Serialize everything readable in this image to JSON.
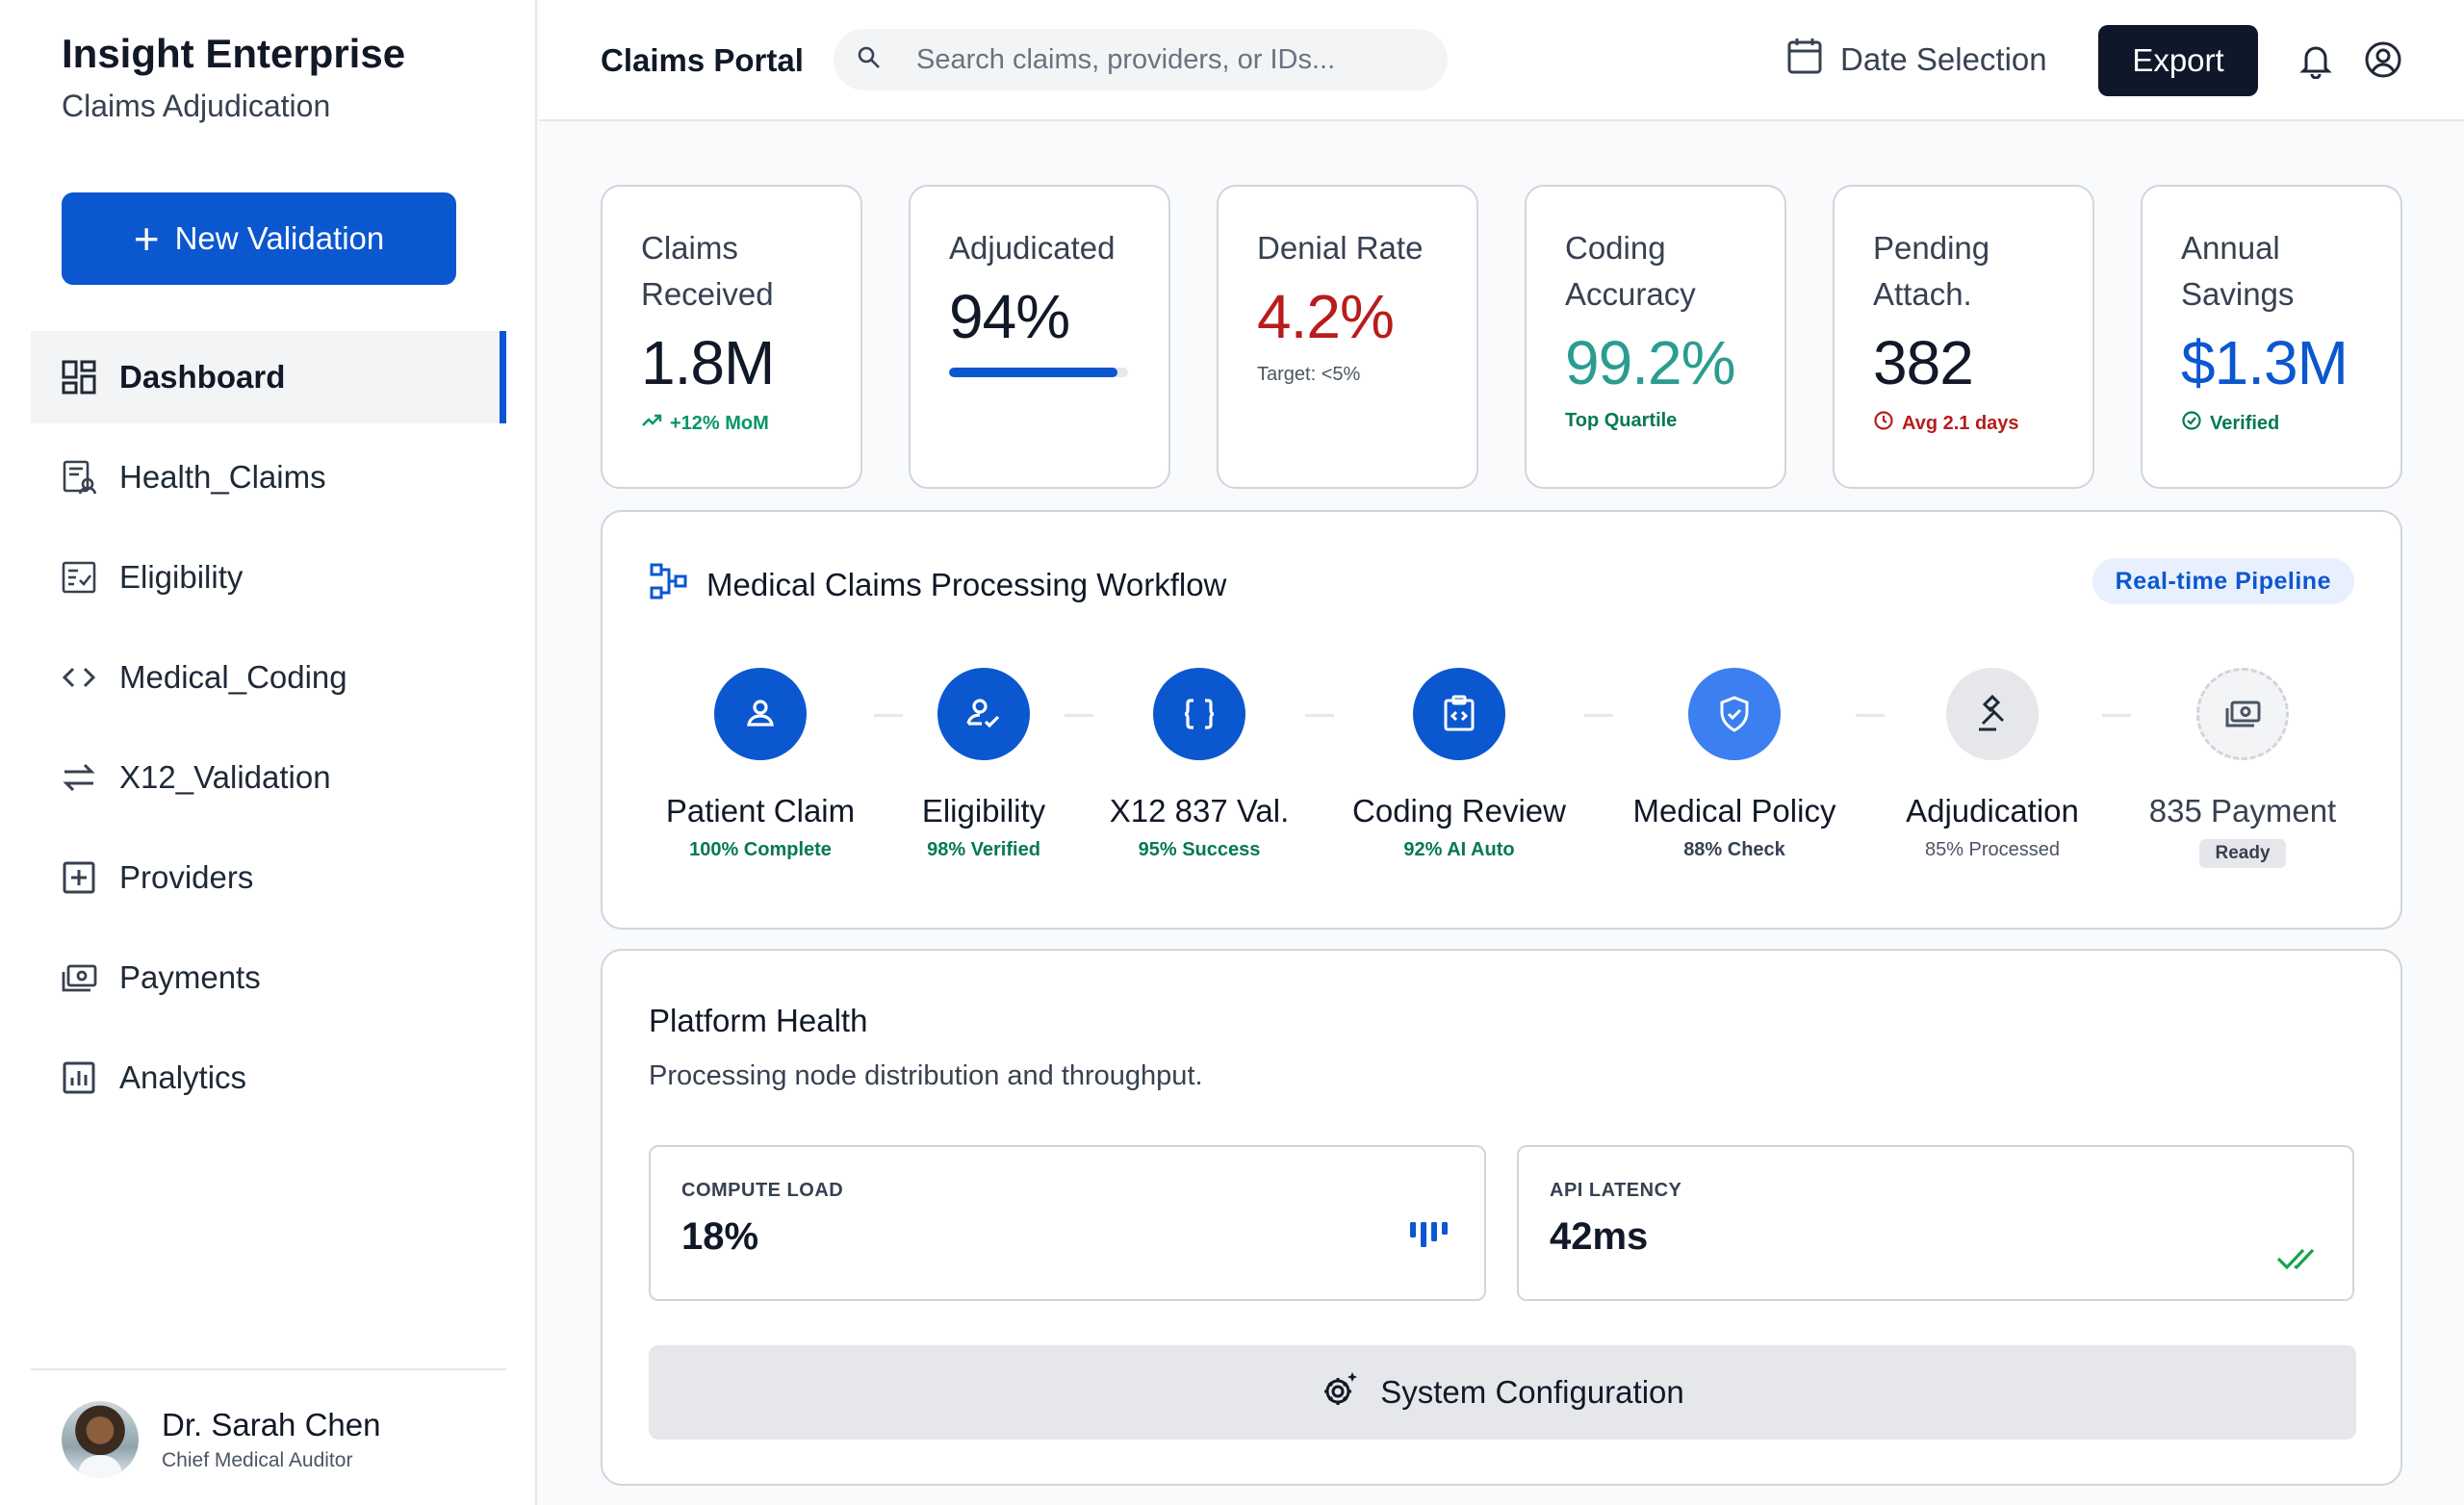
{
  "sidebar": {
    "brand_title": "Insight Enterprise",
    "brand_subtitle": "Claims Adjudication",
    "new_button_label": "New Validation",
    "items": [
      {
        "label": "Dashboard",
        "icon": "dashboard-icon",
        "active": true
      },
      {
        "label": "Health_Claims",
        "icon": "claims-document-icon"
      },
      {
        "label": "Eligibility",
        "icon": "checklist-icon"
      },
      {
        "label": "Medical_Coding",
        "icon": "code-icon"
      },
      {
        "label": "X12_Validation",
        "icon": "swap-arrows-icon"
      },
      {
        "label": "Providers",
        "icon": "medical-plus-icon"
      },
      {
        "label": "Payments",
        "icon": "payments-icon"
      },
      {
        "label": "Analytics",
        "icon": "analytics-icon"
      }
    ],
    "profile": {
      "name": "Dr. Sarah Chen",
      "role": "Chief Medical Auditor"
    }
  },
  "header": {
    "title": "Claims Portal",
    "search_placeholder": "Search claims, providers, or IDs...",
    "date_label": "Date Selection",
    "export_label": "Export"
  },
  "kpis": [
    {
      "label": "Claims Received",
      "value": "1.8M",
      "note": "+12% MoM",
      "note_icon": "trending-up-icon",
      "value_color": "#111827",
      "note_color": "#059669"
    },
    {
      "label": "Adjudicated",
      "value": "94%",
      "progress": 0.94,
      "value_color": "#111827"
    },
    {
      "label": "Denial Rate",
      "value": "4.2%",
      "note": "Target: <5%",
      "value_color": "#b91c1c",
      "note_color": "#4b5563"
    },
    {
      "label": "Coding Accuracy",
      "value": "99.2%",
      "note": "Top Quartile",
      "value_color": "#2a9d8f",
      "note_color": "#047857"
    },
    {
      "label": "Pending Attach.",
      "value": "382",
      "note": "Avg 2.1 days",
      "note_icon": "clock-icon",
      "value_color": "#111827",
      "note_color": "#b91c1c"
    },
    {
      "label": "Annual Savings",
      "value": "$1.3M",
      "note": "Verified",
      "note_icon": "check-circle-icon",
      "value_color": "#0b57d0",
      "note_color": "#047857"
    }
  ],
  "workflow": {
    "title": "Medical Claims Processing Workflow",
    "badge": "Real-time Pipeline",
    "steps": [
      {
        "label": "Patient Claim",
        "status": "100% Complete",
        "icon": "user-icon",
        "color": "#0b57d0",
        "status_color": "#047857"
      },
      {
        "label": "Eligibility",
        "status": "98% Verified",
        "icon": "user-check-icon",
        "color": "#0b57d0",
        "status_color": "#047857"
      },
      {
        "label": "X12 837 Val.",
        "status": "95% Success",
        "icon": "braces-icon",
        "color": "#0b57d0",
        "status_color": "#047857"
      },
      {
        "label": "Coding Review",
        "status": "92% AI Auto",
        "icon": "clipboard-code-icon",
        "color": "#0b57d0",
        "status_color": "#047857"
      },
      {
        "label": "Medical Policy",
        "status": "88% Check",
        "icon": "shield-check-icon",
        "color": "#3b7ff0",
        "status_color": "#374151"
      },
      {
        "label": "Adjudication",
        "status": "85% Processed",
        "icon": "gavel-icon",
        "color": "#e5e7eb",
        "status_color": "#4b5563"
      },
      {
        "label": "835 Payment",
        "status": "Ready",
        "icon": "payments-icon",
        "color": "#f3f4f6",
        "status_color": "#374151"
      }
    ]
  },
  "health": {
    "title": "Platform Health",
    "subtitle": "Processing node distribution and throughput.",
    "metrics": [
      {
        "label": "COMPUTE LOAD",
        "value": "18%",
        "icon": "bar-activity-icon"
      },
      {
        "label": "API LATENCY",
        "value": "42ms",
        "icon": "double-check-icon"
      }
    ],
    "config_button": "System Configuration"
  }
}
